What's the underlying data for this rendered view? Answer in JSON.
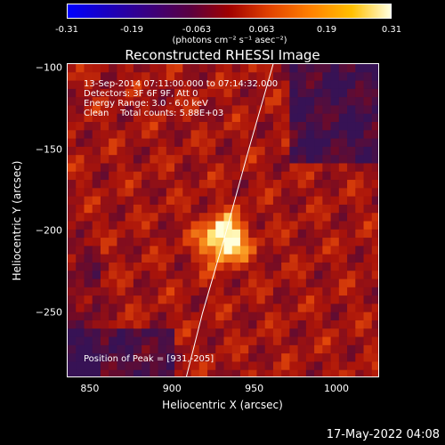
{
  "chart_data": {
    "type": "heatmap",
    "title": "Reconstructed RHESSI Image",
    "xlabel": "Heliocentric X (arcsec)",
    "ylabel": "Heliocentric Y (arcsec)",
    "xlim": [
      836,
      1026
    ],
    "ylim": [
      -290,
      -97
    ],
    "x_ticks": [
      850,
      900,
      950,
      1000
    ],
    "y_ticks": [
      -100,
      -150,
      -200,
      -250
    ],
    "colorbar": {
      "ticks": [
        "-0.31",
        "-0.19",
        "-0.063",
        "0.063",
        "0.19",
        "0.31"
      ],
      "unit": "(photons cm⁻² s⁻¹ asec⁻²)",
      "range": [
        -0.31,
        0.31
      ]
    },
    "annotations": [
      "13-Sep-2014 07:11:00.000 to 07:14:32.000",
      "Detectors: 3F 6F 9F, Att 0",
      "Energy Range: 3.0 - 6.0 keV",
      "Clean    Total counts: 5.88E+03"
    ],
    "peak_label": "Position of Peak = [931,-205]",
    "peak": {
      "x": 931,
      "y": -205
    },
    "limb": [
      [
        908,
        -290
      ],
      [
        918,
        -250
      ],
      [
        931,
        -205
      ],
      [
        946,
        -150
      ],
      [
        961,
        -97
      ]
    ]
  },
  "timestamp": "17-May-2022 04:08"
}
